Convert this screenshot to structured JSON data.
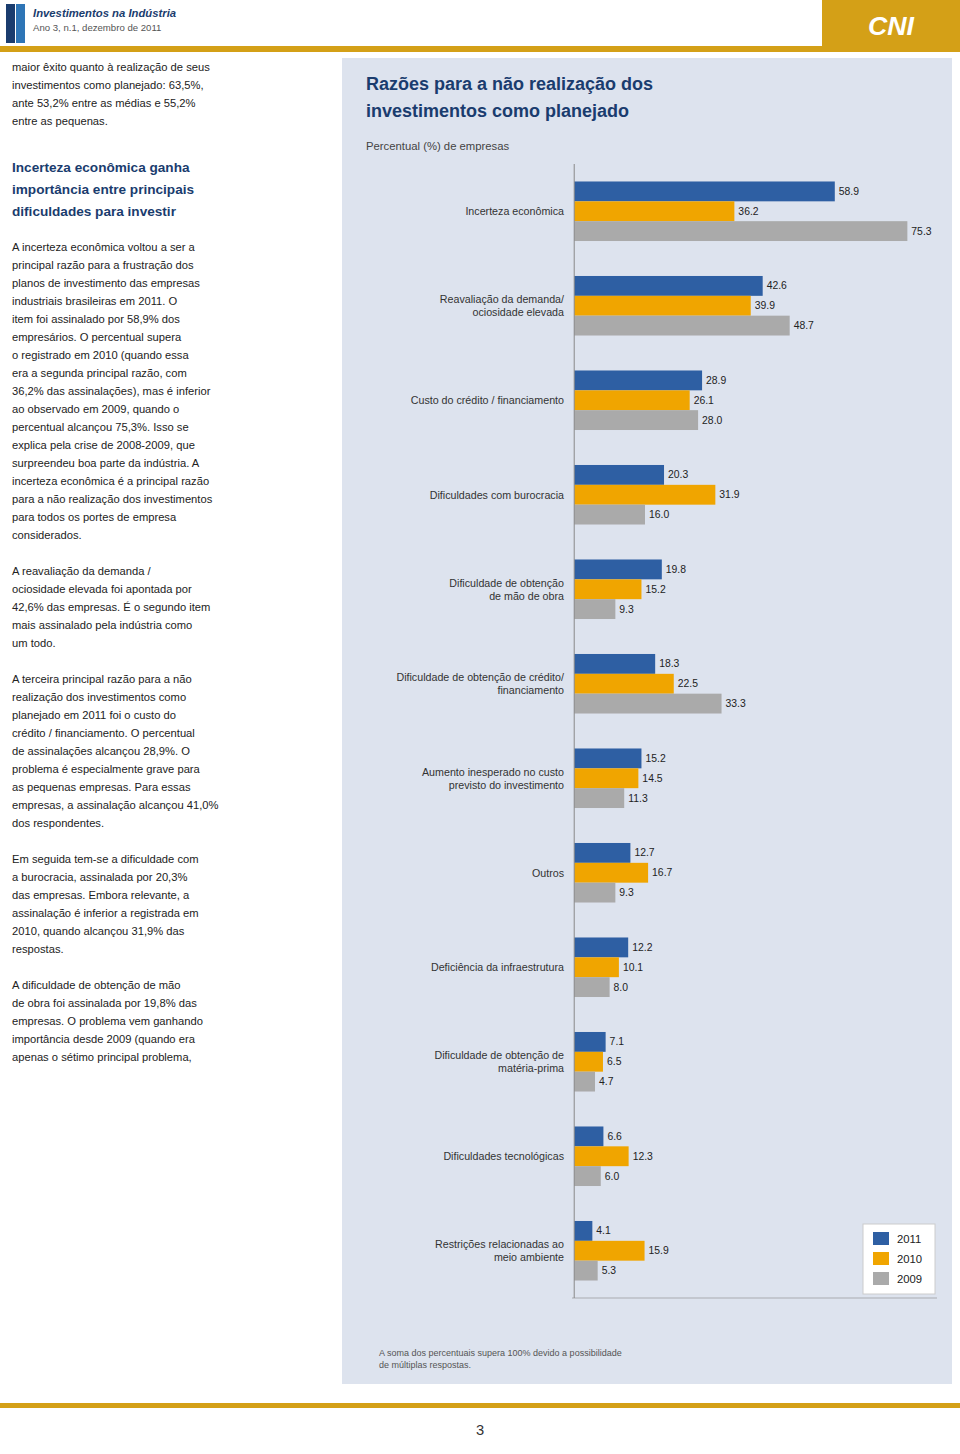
{
  "chart_data": {
    "type": "bar",
    "orientation": "horizontal",
    "title": "Razões para a não realização dos\ninvestimentos como planejado",
    "subtitle": "Percentual (%) de empresas",
    "categories": [
      "Incerteza econômica",
      "Reavaliação da demanda/\nociosidade elevada",
      "Custo do crédito / financiamento",
      "Dificuldades com burocracia",
      "Dificuldade de obtenção\nde mão de obra",
      "Dificuldade de obtenção de crédito/\nfinanciamento",
      "Aumento inesperado no custo\nprevisto do investimento",
      "Outros",
      "Deficiência da infraestrutura",
      "Dificuldade de obtenção de\nmatéria-prima",
      "Dificuldades tecnológicas",
      "Restrições relacionadas ao\nmeio ambiente"
    ],
    "series": [
      {
        "name": "2011",
        "color": "#2E5FA3",
        "values": [
          58.9,
          42.6,
          28.9,
          20.3,
          19.8,
          18.3,
          15.2,
          12.7,
          12.2,
          7.1,
          6.6,
          4.1
        ]
      },
      {
        "name": "2010",
        "color": "#F0A500",
        "values": [
          36.2,
          39.9,
          26.1,
          31.9,
          15.2,
          22.5,
          14.5,
          16.7,
          10.1,
          6.5,
          12.3,
          15.9
        ]
      },
      {
        "name": "2009",
        "color": "#AAAAAA",
        "values": [
          75.3,
          48.7,
          28.0,
          16.0,
          9.3,
          33.3,
          11.3,
          9.3,
          8.0,
          4.7,
          6.0,
          5.3
        ],
        "value_labels": [
          "75.3",
          "48.7",
          "28.0",
          "16.0",
          "9.3",
          "33.3",
          "11.3",
          "9.3",
          "8.0",
          "4.7",
          "6.0",
          "5.3"
        ]
      }
    ],
    "xlim": [
      -0.5,
      82
    ],
    "data_labels": true,
    "legend": "lower right",
    "tick_labels": "y",
    "grid": false,
    "annotations": [
      "Investimentos na Indústria",
      "Ano 3, n.1, dezembro de 2011",
      "CNI",
      "maior êxito quanto à realização de seus\ninvestimentos como planejado: 63,5%,\nante 53,2% entre as médias e 55,2%\nentre as pequenas.",
      "Incerteza econômica ganha\nimportância entre principais\ndificuldades para investir",
      "A incerteza econômica voltou a ser a\nprincipal razão para a frustração dos\nplanos de investimento das empresas\nindustriais brasileiras em 2011. O\nitem foi assinalado por 58,9% dos\nempresários. O percentual supera\no registrado em 2010 (quando essa\nera a segunda principal razão, com\n36,2% das assinalações), mas é inferior\nao observado em 2009, quando o\npercentual alcançou 75,3%. Isso se\nexplica pela crise de 2008-2009, que\nsurpreendeu boa parte da indústria. A\nincerteza econômica é a principal razão\npara a não realização dos investimentos\npara todos os portes de empresa\nconsiderados.",
      "A reavaliação da demanda /\nociosidade elevada foi apontada por\n42,6% das empresas. É o segundo item\nmais assinalado pela indústria como\num todo.",
      "A terceira principal razão para a não\nrealização dos investimentos como\nplanejado em 2011 foi o custo do\ncrédito / financiamento. O percentual\nde assinalações alcançou 28,9%. O\nproblema é especialmente grave para\nas pequenas empresas. Para essas\nempresas, a assinalação alcançou 41,0%\ndos respondentes.",
      "Em seguida tem-se a dificuldade com\na burocracia, assinalada por 20,3%\ndas empresas. Embora relevante, a\nassinalação é inferior a registrada em\n2010, quando alcançou 31,9% das\nrespostas.",
      "A dificuldade de obtenção de mão\nde obra foi assinalada por 19,8% das\nempresas. O problema vem ganhando\nimportância desde 2009 (quando era\napenas o sétimo principal problema,",
      "A soma dos percentuais supera 100% devido a possibilidade\nde múltiplas respostas.",
      "3"
    ]
  }
}
